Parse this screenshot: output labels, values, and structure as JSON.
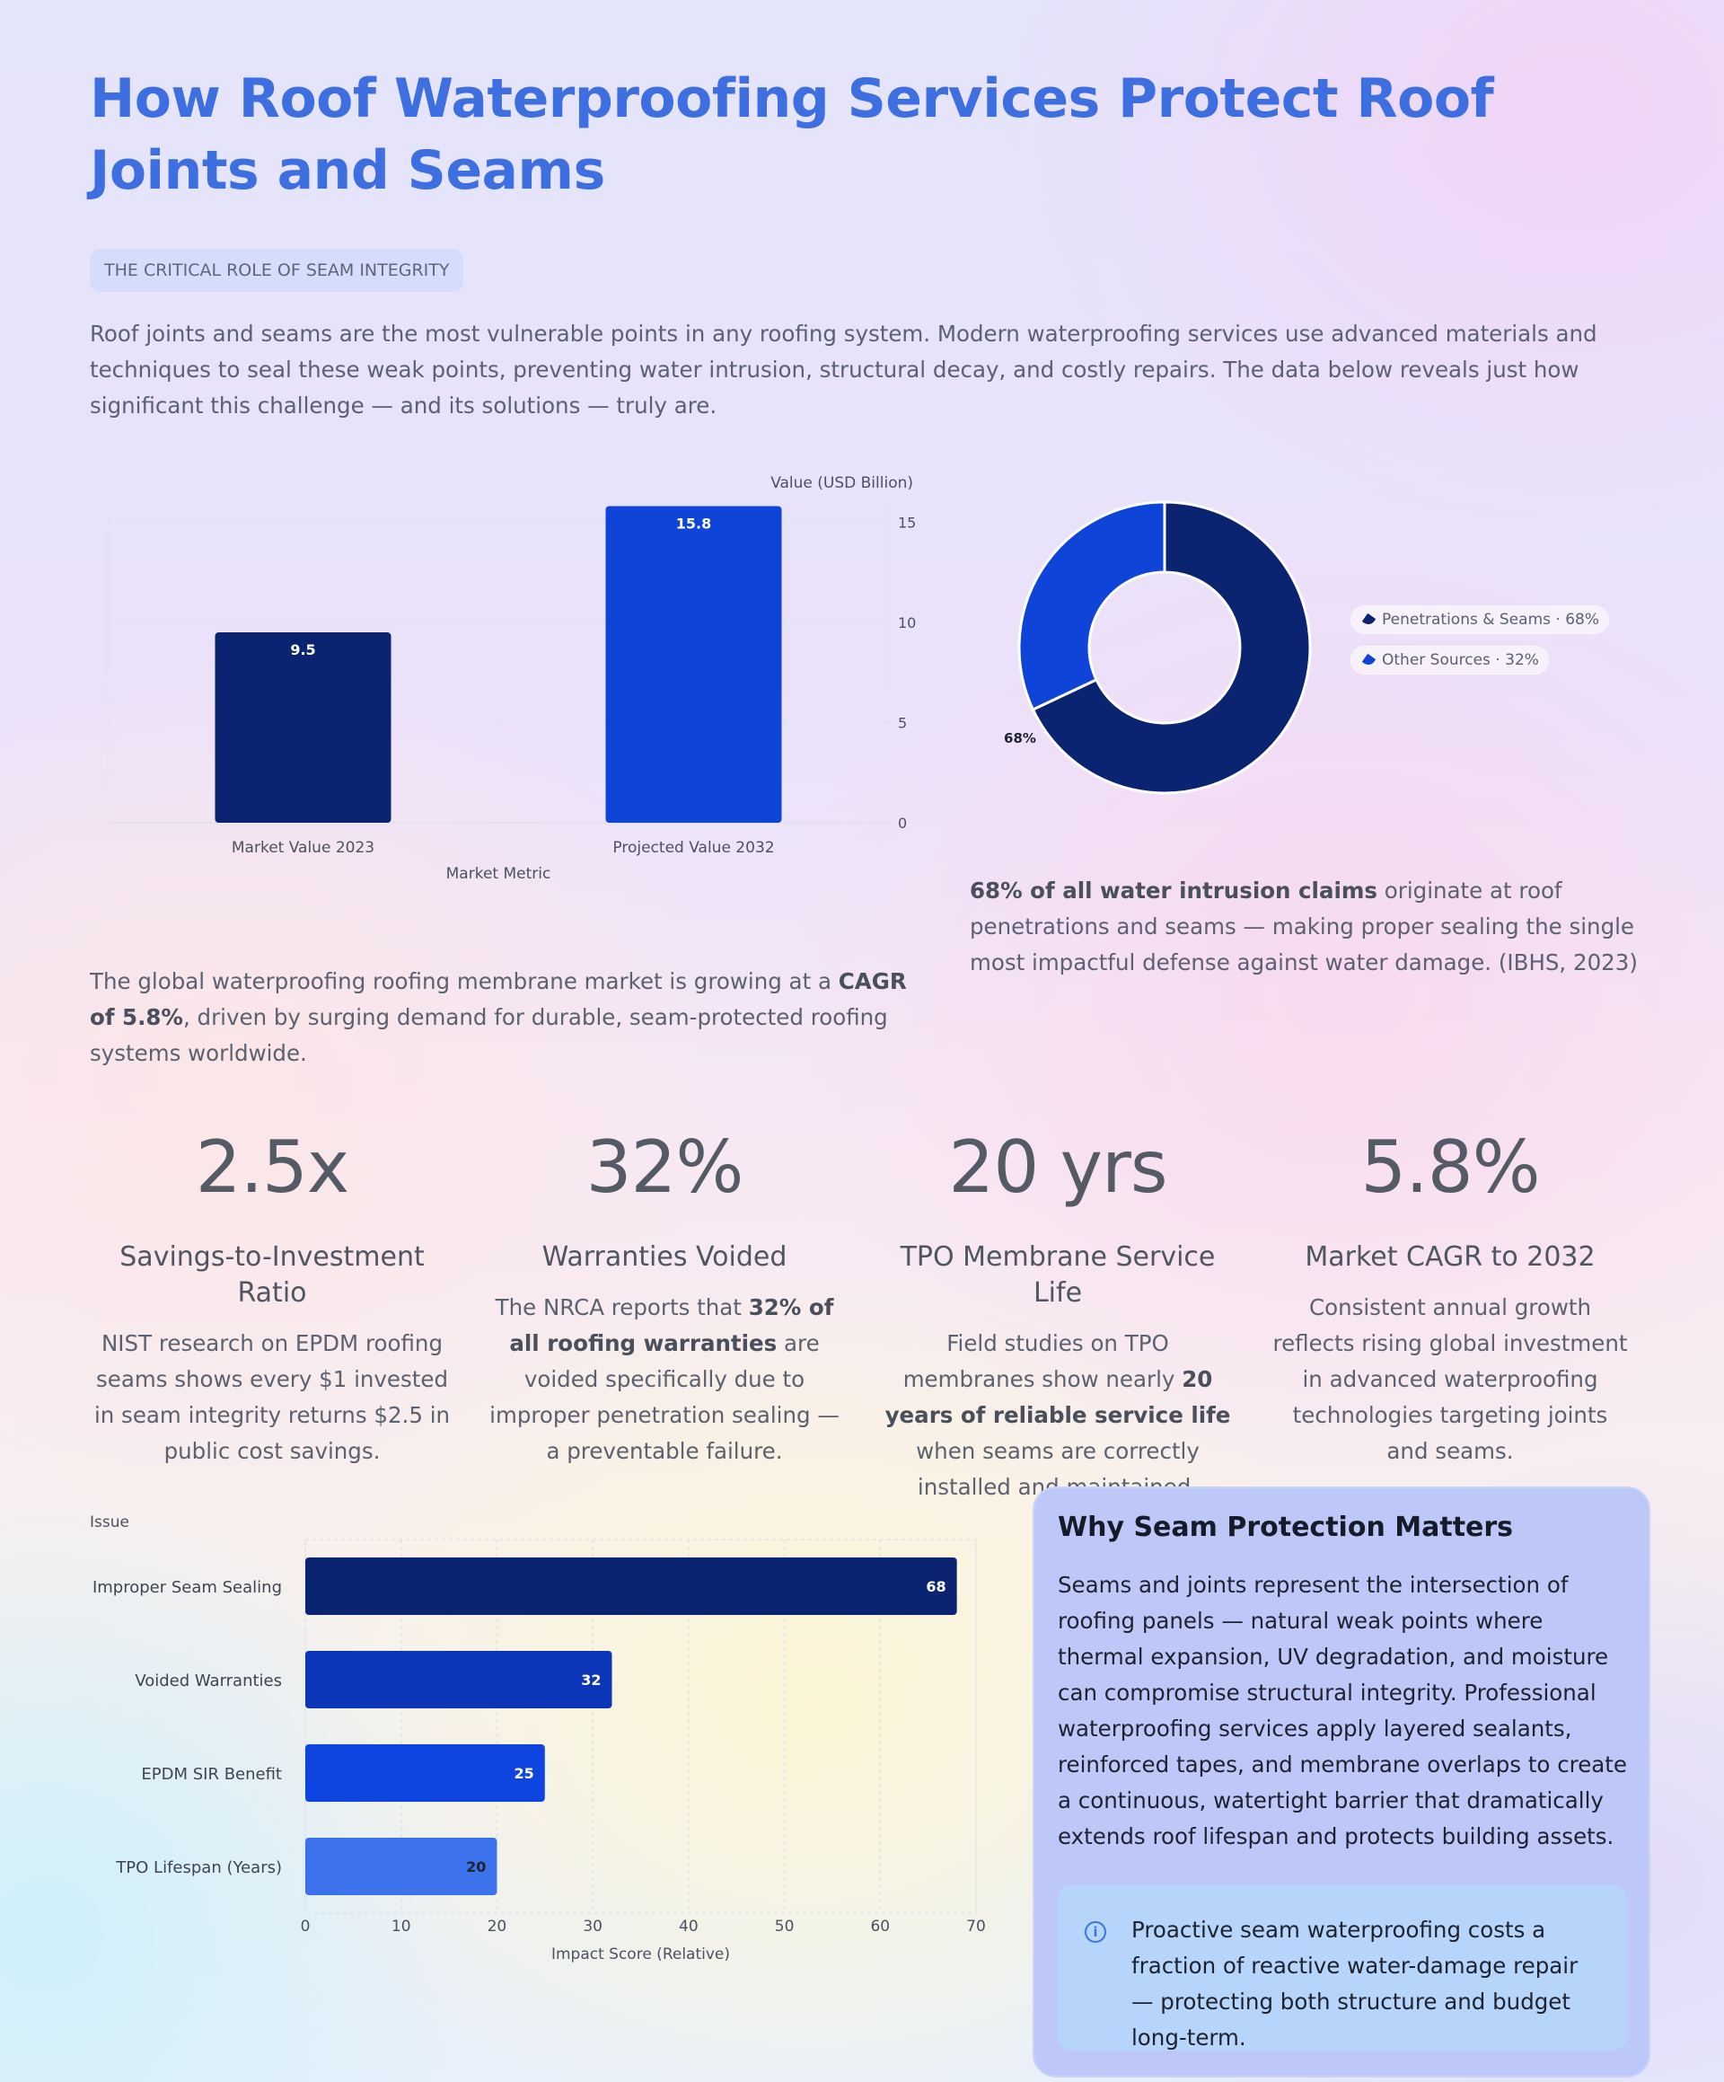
{
  "header": {
    "title": "How Roof Waterproofing Services Protect Roof Joints and Seams",
    "eyebrow": "THE CRITICAL ROLE OF SEAM INTEGRITY",
    "intro": "Roof joints and seams are the most vulnerable points in any roofing system. Modern waterproofing services use advanced materials and techniques to seal these weak points, preventing water intrusion, structural decay, and costly repairs. The data below reveals just how significant this challenge — and its solutions — truly are."
  },
  "chart_data": [
    {
      "type": "bar",
      "categories": [
        "Market Value 2023",
        "Projected Value 2032"
      ],
      "values": [
        9.5,
        15.8
      ],
      "xlabel": "Market Metric",
      "ylabel": "Value (USD Billion)",
      "ylim": [
        0,
        16
      ],
      "yticks": [
        0,
        5,
        10,
        15
      ],
      "y_axis_side": "right",
      "grid": true,
      "colors": [
        "#0b2472",
        "#0e45d8"
      ]
    },
    {
      "type": "pie",
      "donut": true,
      "labels": [
        "Penetrations & Seams",
        "Other Sources"
      ],
      "values": [
        68,
        32
      ],
      "data_labels": [
        "68%",
        "32%"
      ],
      "legend_entries": [
        "Penetrations & Seams · 68%",
        "Other Sources · 32%"
      ],
      "legend_position": "right",
      "colors": [
        "#0b2472",
        "#0e45d8"
      ]
    },
    {
      "type": "bar",
      "orientation": "horizontal",
      "categories": [
        "Improper Seam Sealing",
        "Voided Warranties",
        "EPDM SIR Benefit",
        "TPO Lifespan (Years)"
      ],
      "values": [
        68,
        32,
        25,
        20
      ],
      "xlabel": "Impact Score (Relative)",
      "ylabel": "Issue",
      "xlim": [
        0,
        70
      ],
      "xticks": [
        0,
        10,
        20,
        30,
        40,
        50,
        60,
        70
      ],
      "grid": true,
      "colors": [
        "#0b2472",
        "#0c36b7",
        "#0e45e0",
        "#3c72ec"
      ]
    }
  ],
  "captions": {
    "market": {
      "pre": "The global waterproofing roofing membrane market is growing at a ",
      "bold": "CAGR of 5.8%",
      "post": ", driven by surging demand for durable, seam-protected roofing systems worldwide."
    },
    "claims": {
      "bold": "68% of all water intrusion claims",
      "post": " originate at roof penetrations and seams — making proper sealing the single most impactful defense against water damage. (IBHS, 2023)"
    }
  },
  "stats": [
    {
      "value": "2.5x",
      "label": "Savings-to-Investment Ratio",
      "pre": "NIST research on EPDM roofing seams shows every $1 invested in seam integrity returns $2.5 in public cost savings.",
      "bold": "",
      "post": ""
    },
    {
      "value": "32%",
      "label": "Warranties Voided",
      "pre": "The NRCA reports that ",
      "bold": "32% of all roofing warranties",
      "post": " are voided specifically due to improper penetration sealing — a preventable failure."
    },
    {
      "value": "20 yrs",
      "label": "TPO Membrane Service Life",
      "pre": "Field studies on TPO membranes show nearly ",
      "bold": "20 years of reliable service life",
      "post": " when seams are correctly installed and maintained."
    },
    {
      "value": "5.8%",
      "label": "Market CAGR to 2032",
      "pre": "Consistent annual growth reflects rising global investment in advanced waterproofing technologies targeting joints and seams.",
      "bold": "",
      "post": ""
    }
  ],
  "panel": {
    "title": "Why Seam Protection Matters",
    "text": "Seams and joints represent the intersection of roofing panels — natural weak points where thermal expansion, UV degradation, and moisture can compromise structural integrity. Professional waterproofing services apply layered sealants, reinforced tapes, and membrane overlaps to create a continuous, watertight barrier that dramatically extends roof lifespan and protects building assets.",
    "note_icon": "info-icon",
    "note": "Proactive seam waterproofing costs a fraction of reactive water-damage repair — protecting both structure and budget long-term."
  }
}
